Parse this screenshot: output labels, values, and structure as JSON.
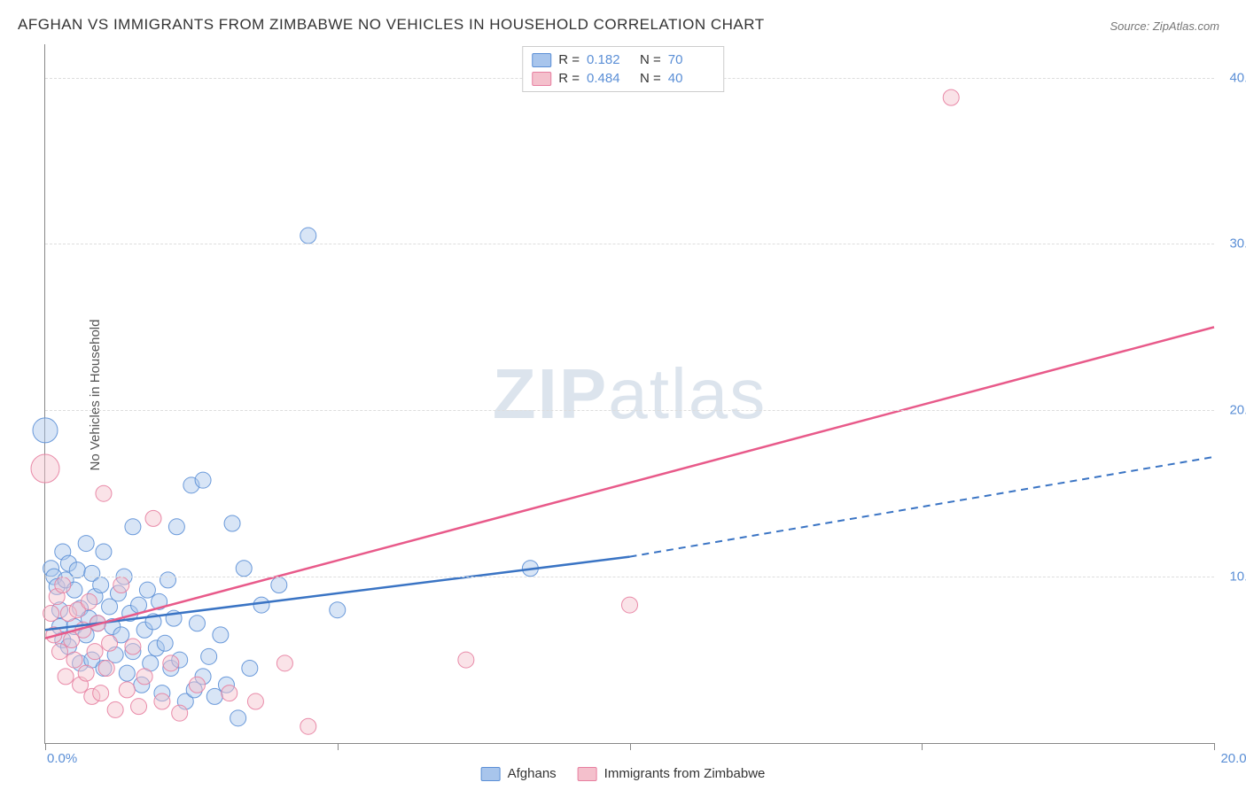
{
  "title": "AFGHAN VS IMMIGRANTS FROM ZIMBABWE NO VEHICLES IN HOUSEHOLD CORRELATION CHART",
  "source": "Source: ZipAtlas.com",
  "ylabel": "No Vehicles in Household",
  "watermark_bold": "ZIP",
  "watermark_rest": "atlas",
  "chart": {
    "type": "scatter",
    "background_color": "#ffffff",
    "grid_color": "#dddddd",
    "axis_color": "#888888",
    "xlim": [
      0,
      20
    ],
    "ylim": [
      0,
      42
    ],
    "xticks": [
      0,
      5,
      10,
      15,
      20
    ],
    "xtick_labels": [
      "0.0%",
      "",
      "",
      "",
      "20.0%"
    ],
    "yticks": [
      10,
      20,
      30,
      40
    ],
    "ytick_labels": [
      "10.0%",
      "20.0%",
      "30.0%",
      "40.0%"
    ],
    "marker_radius": 9,
    "marker_opacity": 0.45,
    "marker_stroke_opacity": 0.9,
    "line_width": 2.5,
    "series": [
      {
        "name": "Afghans",
        "color_fill": "#a8c5ec",
        "color_stroke": "#5b8fd6",
        "line_color": "#3a74c4",
        "R": "0.182",
        "N": "70",
        "trend": {
          "x1": 0,
          "y1": 6.8,
          "x2_solid": 10,
          "y2_solid": 11.2,
          "x2": 20,
          "y2": 17.2
        },
        "points": [
          [
            0.0,
            18.8,
            14
          ],
          [
            0.1,
            10.5,
            9
          ],
          [
            0.15,
            10.0,
            9
          ],
          [
            0.2,
            9.4,
            9
          ],
          [
            0.25,
            8.0,
            9
          ],
          [
            0.25,
            7.0,
            9
          ],
          [
            0.3,
            11.5,
            9
          ],
          [
            0.3,
            6.2,
            9
          ],
          [
            0.35,
            9.8,
            9
          ],
          [
            0.4,
            10.8,
            9
          ],
          [
            0.4,
            5.8,
            9
          ],
          [
            0.5,
            7.0,
            9
          ],
          [
            0.5,
            9.2,
            9
          ],
          [
            0.55,
            10.4,
            9
          ],
          [
            0.6,
            8.1,
            9
          ],
          [
            0.6,
            4.8,
            9
          ],
          [
            0.7,
            12.0,
            9
          ],
          [
            0.7,
            6.5,
            9
          ],
          [
            0.75,
            7.5,
            9
          ],
          [
            0.8,
            10.2,
            9
          ],
          [
            0.8,
            5.0,
            9
          ],
          [
            0.85,
            8.8,
            9
          ],
          [
            0.9,
            7.2,
            9
          ],
          [
            0.95,
            9.5,
            9
          ],
          [
            1.0,
            11.5,
            9
          ],
          [
            1.0,
            4.5,
            9
          ],
          [
            1.1,
            8.2,
            9
          ],
          [
            1.15,
            7.0,
            9
          ],
          [
            1.2,
            5.3,
            9
          ],
          [
            1.25,
            9.0,
            9
          ],
          [
            1.3,
            6.5,
            9
          ],
          [
            1.35,
            10.0,
            9
          ],
          [
            1.4,
            4.2,
            9
          ],
          [
            1.45,
            7.8,
            9
          ],
          [
            1.5,
            13.0,
            9
          ],
          [
            1.5,
            5.5,
            9
          ],
          [
            1.6,
            8.3,
            9
          ],
          [
            1.65,
            3.5,
            9
          ],
          [
            1.7,
            6.8,
            9
          ],
          [
            1.75,
            9.2,
            9
          ],
          [
            1.8,
            4.8,
            9
          ],
          [
            1.85,
            7.3,
            9
          ],
          [
            1.9,
            5.7,
            9
          ],
          [
            1.95,
            8.5,
            9
          ],
          [
            2.0,
            3.0,
            9
          ],
          [
            2.05,
            6.0,
            9
          ],
          [
            2.1,
            9.8,
            9
          ],
          [
            2.15,
            4.5,
            9
          ],
          [
            2.2,
            7.5,
            9
          ],
          [
            2.25,
            13.0,
            9
          ],
          [
            2.3,
            5.0,
            9
          ],
          [
            2.4,
            2.5,
            9
          ],
          [
            2.5,
            15.5,
            9
          ],
          [
            2.55,
            3.2,
            9
          ],
          [
            2.6,
            7.2,
            9
          ],
          [
            2.7,
            15.8,
            9
          ],
          [
            2.7,
            4.0,
            9
          ],
          [
            2.8,
            5.2,
            9
          ],
          [
            2.9,
            2.8,
            9
          ],
          [
            3.0,
            6.5,
            9
          ],
          [
            3.1,
            3.5,
            9
          ],
          [
            3.2,
            13.2,
            9
          ],
          [
            3.3,
            1.5,
            9
          ],
          [
            3.4,
            10.5,
            9
          ],
          [
            3.5,
            4.5,
            9
          ],
          [
            3.7,
            8.3,
            9
          ],
          [
            4.0,
            9.5,
            9
          ],
          [
            4.5,
            30.5,
            9
          ],
          [
            5.0,
            8.0,
            9
          ],
          [
            8.3,
            10.5,
            9
          ]
        ]
      },
      {
        "name": "Immigrants from Zimbabwe",
        "color_fill": "#f4c0cc",
        "color_stroke": "#e77ea0",
        "line_color": "#e85a8a",
        "R": "0.484",
        "N": "40",
        "trend": {
          "x1": 0,
          "y1": 6.3,
          "x2_solid": 20,
          "y2_solid": 25.0,
          "x2": 20,
          "y2": 25.0
        },
        "points": [
          [
            0.0,
            16.5,
            16
          ],
          [
            0.1,
            7.8,
            9
          ],
          [
            0.15,
            6.5,
            9
          ],
          [
            0.2,
            8.8,
            9
          ],
          [
            0.25,
            5.5,
            9
          ],
          [
            0.3,
            9.5,
            9
          ],
          [
            0.35,
            4.0,
            9
          ],
          [
            0.4,
            7.8,
            9
          ],
          [
            0.45,
            6.2,
            9
          ],
          [
            0.5,
            5.0,
            9
          ],
          [
            0.55,
            8.0,
            9
          ],
          [
            0.6,
            3.5,
            9
          ],
          [
            0.65,
            6.8,
            9
          ],
          [
            0.7,
            4.2,
            9
          ],
          [
            0.75,
            8.5,
            9
          ],
          [
            0.8,
            2.8,
            9
          ],
          [
            0.85,
            5.5,
            9
          ],
          [
            0.9,
            7.2,
            9
          ],
          [
            0.95,
            3.0,
            9
          ],
          [
            1.0,
            15.0,
            9
          ],
          [
            1.05,
            4.5,
            9
          ],
          [
            1.1,
            6.0,
            9
          ],
          [
            1.2,
            2.0,
            9
          ],
          [
            1.3,
            9.5,
            9
          ],
          [
            1.4,
            3.2,
            9
          ],
          [
            1.5,
            5.8,
            9
          ],
          [
            1.6,
            2.2,
            9
          ],
          [
            1.7,
            4.0,
            9
          ],
          [
            1.85,
            13.5,
            9
          ],
          [
            2.0,
            2.5,
            9
          ],
          [
            2.15,
            4.8,
            9
          ],
          [
            2.3,
            1.8,
            9
          ],
          [
            2.6,
            3.5,
            9
          ],
          [
            3.15,
            3.0,
            9
          ],
          [
            3.6,
            2.5,
            9
          ],
          [
            4.1,
            4.8,
            9
          ],
          [
            4.5,
            1.0,
            9
          ],
          [
            7.2,
            5.0,
            9
          ],
          [
            10.0,
            8.3,
            9
          ],
          [
            15.5,
            38.8,
            9
          ]
        ]
      }
    ]
  },
  "legend_bottom": [
    {
      "label": "Afghans",
      "fill": "#a8c5ec",
      "stroke": "#5b8fd6"
    },
    {
      "label": "Immigrants from Zimbabwe",
      "fill": "#f4c0cc",
      "stroke": "#e77ea0"
    }
  ]
}
